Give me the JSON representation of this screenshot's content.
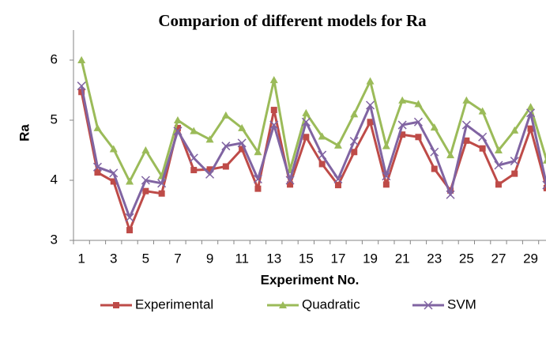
{
  "chart_data": {
    "type": "line",
    "title": "Comparion of different models for Ra",
    "x_label": "Experiment No.",
    "y_label": "Ra",
    "categories": [
      1,
      null,
      3,
      null,
      5,
      null,
      7,
      null,
      9,
      null,
      11,
      null,
      13,
      null,
      15,
      null,
      17,
      null,
      19,
      null,
      21,
      null,
      23,
      null,
      25,
      null,
      27,
      null,
      29,
      null
    ],
    "ylim": [
      3,
      6.5
    ],
    "yticks": [
      3,
      4,
      5,
      6
    ],
    "grid": false,
    "legend": "bottom",
    "series": [
      {
        "name": "Experimental",
        "color": "#be4b48",
        "marker": "square",
        "values": [
          5.47,
          4.13,
          3.98,
          3.17,
          3.82,
          3.78,
          4.87,
          4.17,
          4.18,
          4.23,
          4.52,
          3.86,
          5.17,
          3.93,
          4.72,
          4.27,
          3.92,
          4.47,
          4.97,
          3.93,
          4.76,
          4.72,
          4.19,
          3.83,
          4.66,
          4.53,
          3.93,
          4.11,
          4.86,
          3.87
        ]
      },
      {
        "name": "Quadratic",
        "color": "#9bbb59",
        "marker": "triangle",
        "values": [
          6.0,
          4.87,
          4.52,
          3.98,
          4.5,
          4.07,
          5.0,
          4.82,
          4.68,
          5.08,
          4.87,
          4.47,
          5.67,
          4.17,
          5.12,
          4.73,
          4.58,
          5.1,
          5.65,
          4.57,
          5.33,
          5.27,
          4.88,
          4.42,
          5.33,
          5.15,
          4.5,
          4.83,
          5.22,
          4.33
        ]
      },
      {
        "name": "SVM",
        "color": "#8064a2",
        "marker": "x",
        "values": [
          5.57,
          4.22,
          4.12,
          3.38,
          4.0,
          3.95,
          4.82,
          4.37,
          4.1,
          4.57,
          4.62,
          4.02,
          4.92,
          4.0,
          4.97,
          4.42,
          4.02,
          4.65,
          5.25,
          4.07,
          4.92,
          4.97,
          4.47,
          3.76,
          4.92,
          4.72,
          4.25,
          4.32,
          5.12,
          3.92
        ]
      }
    ]
  }
}
